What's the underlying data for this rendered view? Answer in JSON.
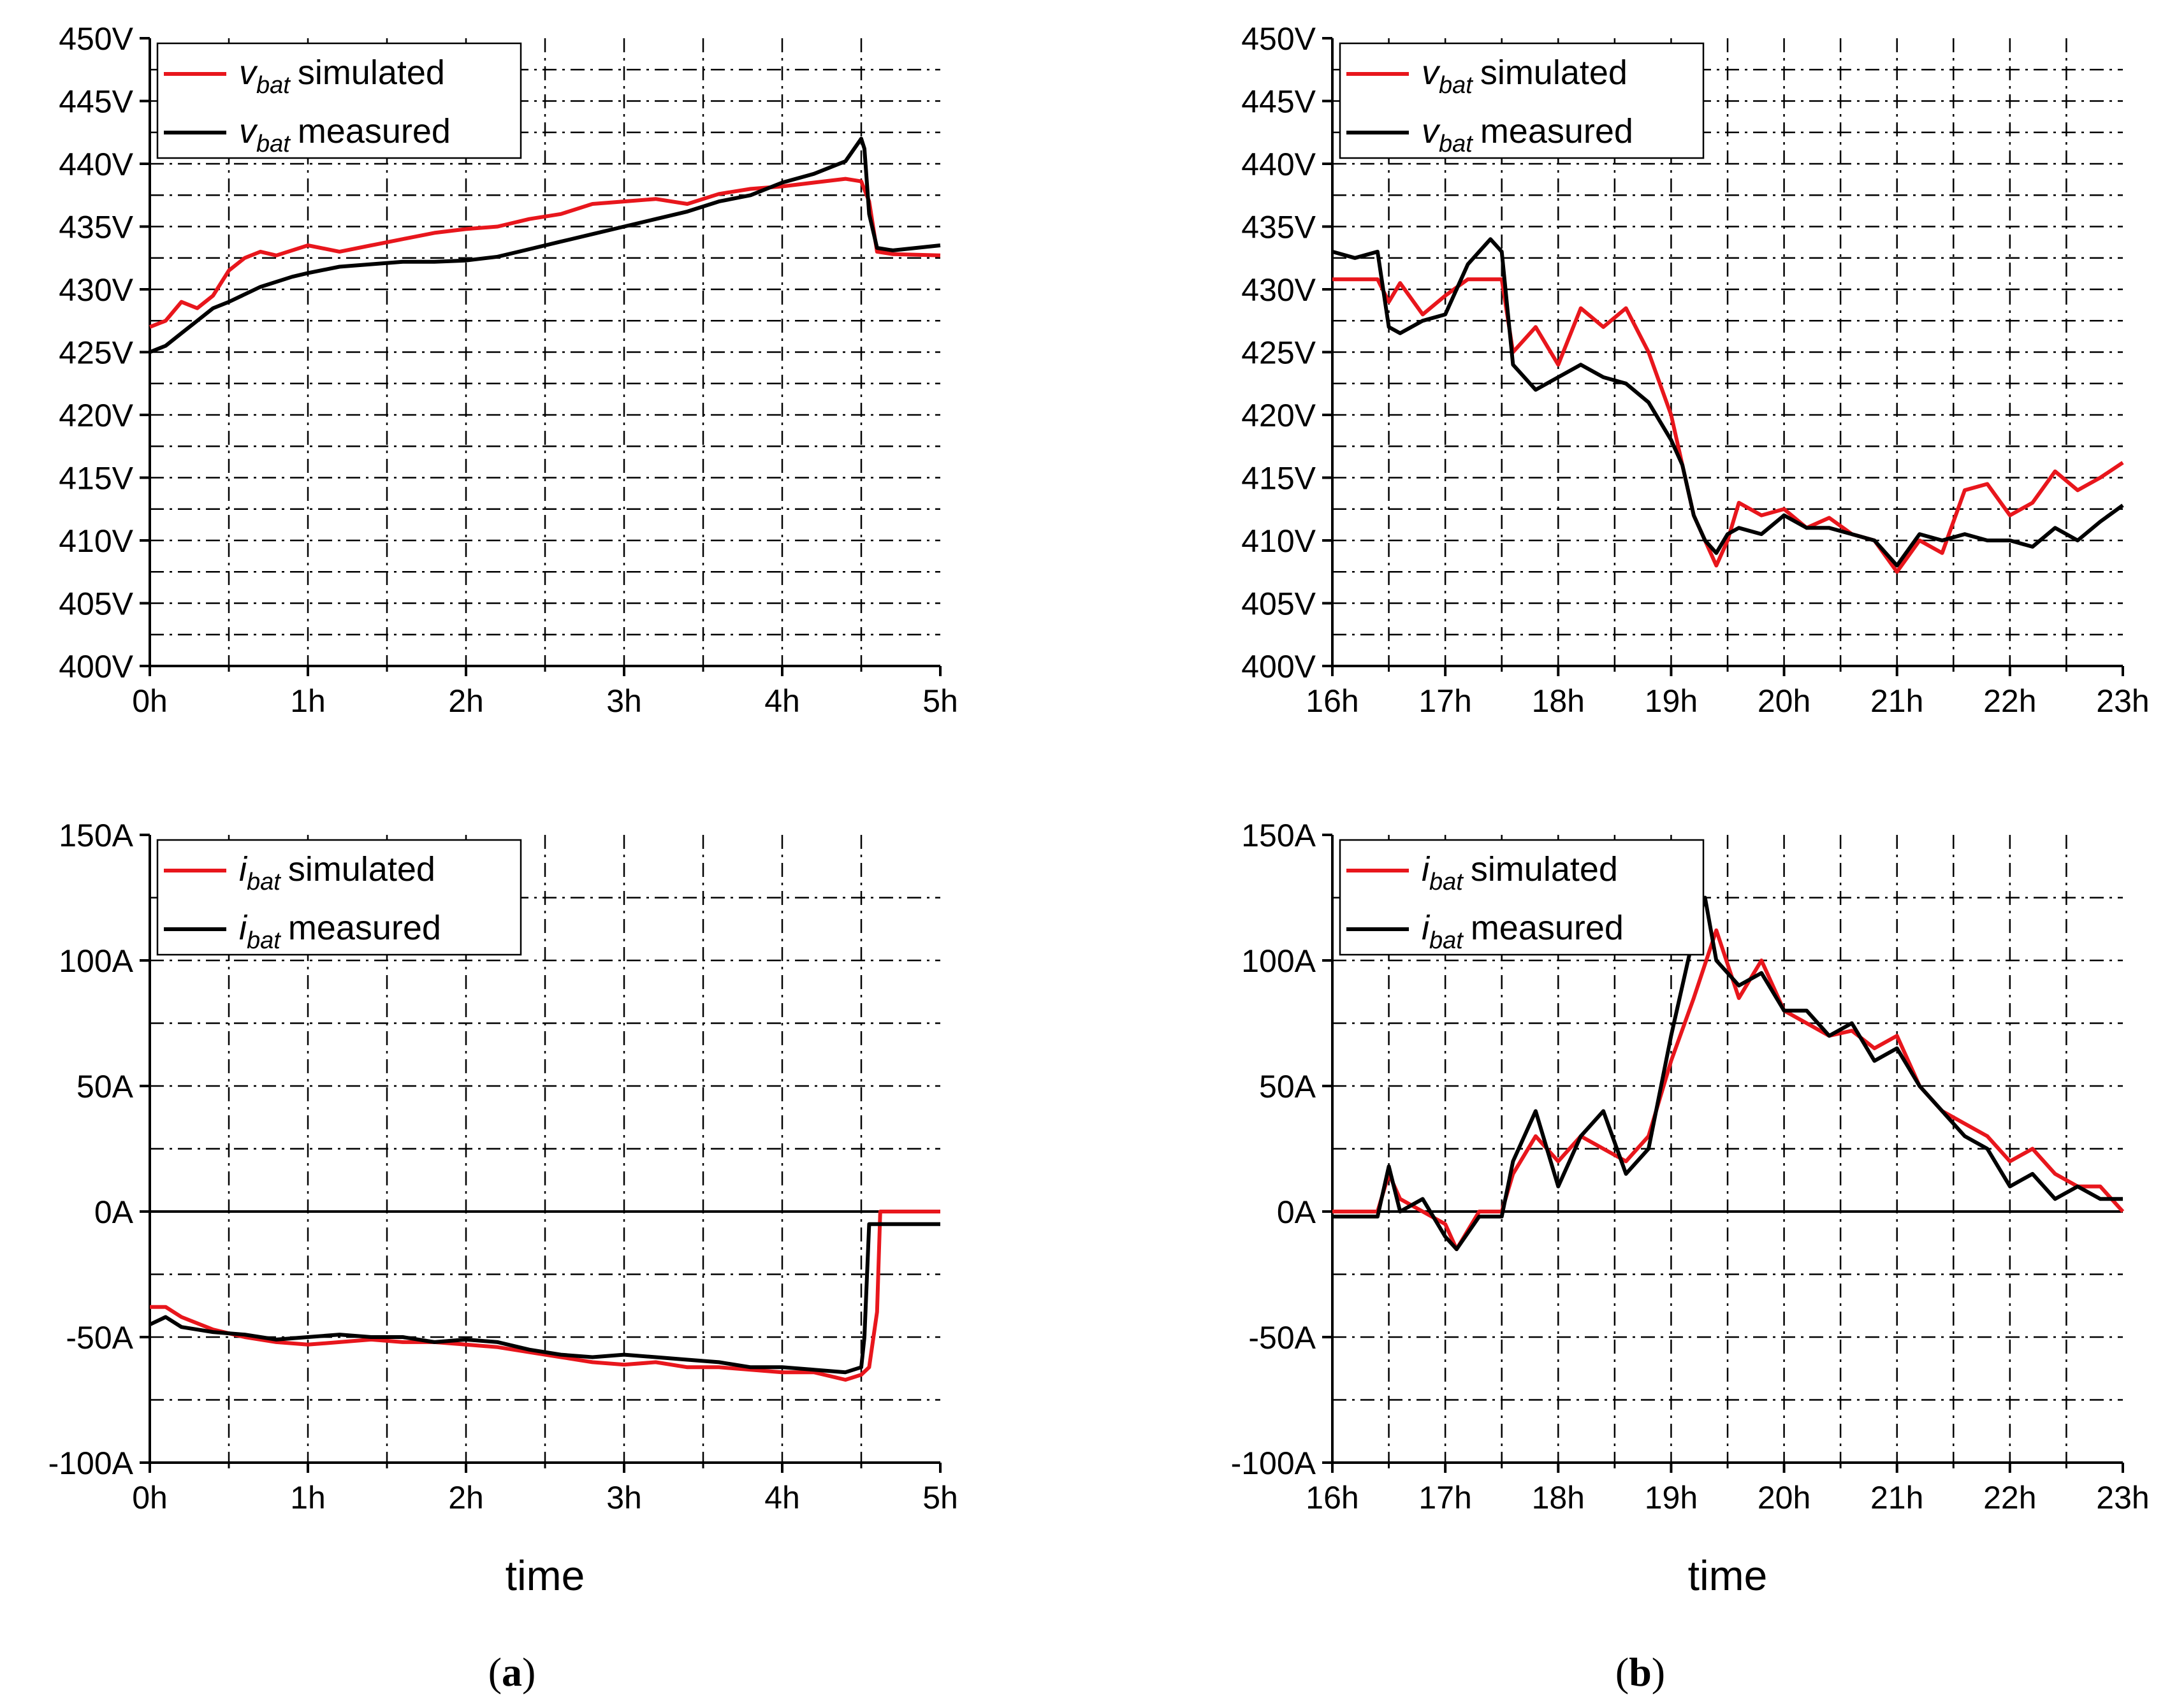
{
  "colors": {
    "simulated": "#e8161c",
    "measured": "#000000",
    "grid": "#000000"
  },
  "captions": [
    "a",
    "b"
  ],
  "chart_data": [
    {
      "type": "line",
      "panel": "a-top",
      "xlabel": "",
      "ylabel": "",
      "xlim": [
        0,
        5
      ],
      "ylim": [
        400,
        450
      ],
      "xticks": [
        0,
        1,
        2,
        3,
        4,
        5
      ],
      "xticklabels": [
        "0h",
        "1h",
        "2h",
        "3h",
        "4h",
        "5h"
      ],
      "yticks": [
        400,
        405,
        410,
        415,
        420,
        425,
        430,
        435,
        440,
        445,
        450
      ],
      "yticklabels": [
        "400V",
        "405V",
        "410V",
        "415V",
        "420V",
        "425V",
        "430V",
        "435V",
        "440V",
        "445V",
        "450V"
      ],
      "grid": true,
      "legend": "top-left",
      "series": [
        {
          "name": "simulated",
          "var": "v",
          "sub": "bat",
          "label": "simulated",
          "color": "#e8161c",
          "x": [
            0,
            0.1,
            0.2,
            0.3,
            0.4,
            0.5,
            0.6,
            0.7,
            0.8,
            1.0,
            1.2,
            1.4,
            1.6,
            1.8,
            2.0,
            2.2,
            2.4,
            2.6,
            2.8,
            3.0,
            3.2,
            3.4,
            3.6,
            3.8,
            4.0,
            4.2,
            4.4,
            4.5,
            4.55,
            4.6,
            4.7,
            5.0
          ],
          "values": [
            427,
            427.5,
            429,
            428.5,
            429.5,
            431.5,
            432.5,
            433,
            432.7,
            433.5,
            433,
            433.5,
            434,
            434.5,
            434.8,
            435,
            435.6,
            436,
            436.8,
            437,
            437.2,
            436.8,
            437.6,
            438,
            438.2,
            438.5,
            438.8,
            438.6,
            437,
            433,
            432.8,
            432.7
          ]
        },
        {
          "name": "measured",
          "var": "v",
          "sub": "bat",
          "label": "measured",
          "color": "#000000",
          "x": [
            0,
            0.1,
            0.2,
            0.3,
            0.4,
            0.5,
            0.7,
            0.9,
            1.0,
            1.2,
            1.4,
            1.6,
            1.8,
            2.0,
            2.2,
            2.4,
            2.6,
            2.8,
            3.0,
            3.2,
            3.4,
            3.6,
            3.8,
            4.0,
            4.2,
            4.4,
            4.5,
            4.52,
            4.55,
            4.6,
            4.7,
            5.0
          ],
          "values": [
            425,
            425.5,
            426.5,
            427.5,
            428.5,
            429,
            430.2,
            431,
            431.3,
            431.8,
            432,
            432.2,
            432.2,
            432.3,
            432.6,
            433.2,
            433.8,
            434.4,
            435,
            435.6,
            436.2,
            437,
            437.5,
            438.5,
            439.2,
            440.2,
            442,
            441.2,
            436,
            433.3,
            433.1,
            433.5
          ]
        }
      ]
    },
    {
      "type": "line",
      "panel": "b-top",
      "xlabel": "",
      "ylabel": "",
      "xlim": [
        16,
        23
      ],
      "ylim": [
        400,
        450
      ],
      "xticks": [
        16,
        17,
        18,
        19,
        20,
        21,
        22,
        23
      ],
      "xticklabels": [
        "16h",
        "17h",
        "18h",
        "19h",
        "20h",
        "21h",
        "22h",
        "23h"
      ],
      "yticks": [
        400,
        405,
        410,
        415,
        420,
        425,
        430,
        435,
        440,
        445,
        450
      ],
      "yticklabels": [
        "400V",
        "405V",
        "410V",
        "415V",
        "420V",
        "425V",
        "430V",
        "435V",
        "440V",
        "445V",
        "450V"
      ],
      "grid": true,
      "legend": "top-left",
      "series": [
        {
          "name": "simulated",
          "var": "v",
          "sub": "bat",
          "label": "simulated",
          "color": "#e8161c",
          "x": [
            16,
            16.4,
            16.5,
            16.6,
            16.8,
            17,
            17.2,
            17.4,
            17.5,
            17.6,
            17.8,
            18,
            18.2,
            18.4,
            18.6,
            18.8,
            19,
            19.1,
            19.2,
            19.3,
            19.4,
            19.5,
            19.6,
            19.8,
            20,
            20.2,
            20.4,
            20.6,
            20.8,
            21,
            21.2,
            21.4,
            21.6,
            21.8,
            22,
            22.2,
            22.4,
            22.6,
            22.8,
            23
          ],
          "values": [
            430.8,
            430.8,
            429,
            430.5,
            428,
            429.5,
            430.8,
            430.8,
            430.8,
            425,
            427,
            424,
            428.5,
            427,
            428.5,
            425,
            420,
            416,
            412,
            410,
            408,
            410,
            413,
            412,
            412.5,
            411,
            411.8,
            410.5,
            410,
            407.5,
            410,
            409,
            414,
            414.5,
            412,
            413,
            415.5,
            414,
            415,
            416.2
          ]
        },
        {
          "name": "measured",
          "var": "v",
          "sub": "bat",
          "label": "measured",
          "color": "#000000",
          "x": [
            16,
            16.2,
            16.4,
            16.5,
            16.6,
            16.8,
            17,
            17.2,
            17.4,
            17.5,
            17.6,
            17.8,
            18,
            18.2,
            18.4,
            18.6,
            18.8,
            19,
            19.1,
            19.2,
            19.3,
            19.4,
            19.5,
            19.6,
            19.8,
            20,
            20.2,
            20.4,
            20.6,
            20.8,
            21,
            21.2,
            21.4,
            21.6,
            21.8,
            22,
            22.2,
            22.4,
            22.6,
            22.8,
            23
          ],
          "values": [
            433,
            432.5,
            433,
            427,
            426.5,
            427.5,
            428,
            432,
            434,
            433,
            424,
            422,
            423,
            424,
            423,
            422.5,
            421,
            418,
            416,
            412,
            410,
            409,
            410.5,
            411,
            410.5,
            412,
            411,
            411,
            410.5,
            410,
            408,
            410.5,
            410,
            410.5,
            410,
            410,
            409.5,
            411,
            410,
            411.5,
            412.8
          ]
        }
      ]
    },
    {
      "type": "line",
      "panel": "a-bottom",
      "xlabel": "time",
      "ylabel": "",
      "xlim": [
        0,
        5
      ],
      "ylim": [
        -100,
        150
      ],
      "xticks": [
        0,
        1,
        2,
        3,
        4,
        5
      ],
      "xticklabels": [
        "0h",
        "1h",
        "2h",
        "3h",
        "4h",
        "5h"
      ],
      "yticks": [
        -100,
        -50,
        0,
        50,
        100,
        150
      ],
      "yticklabels": [
        "-100A",
        "-50A",
        "0A",
        "50A",
        "100A",
        "150A"
      ],
      "grid": true,
      "legend": "top-left",
      "series": [
        {
          "name": "simulated",
          "var": "i",
          "sub": "bat",
          "label": "simulated",
          "color": "#e8161c",
          "x": [
            0,
            0.1,
            0.2,
            0.4,
            0.6,
            0.8,
            1.0,
            1.2,
            1.4,
            1.6,
            1.8,
            2.0,
            2.2,
            2.4,
            2.6,
            2.8,
            3.0,
            3.2,
            3.4,
            3.6,
            3.8,
            4.0,
            4.2,
            4.4,
            4.5,
            4.55,
            4.6,
            4.62,
            5.0
          ],
          "values": [
            -38,
            -38,
            -42,
            -47,
            -50,
            -52,
            -53,
            -52,
            -51,
            -52,
            -52,
            -53,
            -54,
            -56,
            -58,
            -60,
            -61,
            -60,
            -62,
            -62,
            -63,
            -64,
            -64,
            -67,
            -65,
            -62,
            -40,
            0,
            0
          ]
        },
        {
          "name": "measured",
          "var": "i",
          "sub": "bat",
          "label": "measured",
          "color": "#000000",
          "x": [
            0,
            0.1,
            0.2,
            0.4,
            0.6,
            0.8,
            1.0,
            1.2,
            1.4,
            1.6,
            1.8,
            2.0,
            2.2,
            2.4,
            2.6,
            2.8,
            3.0,
            3.2,
            3.4,
            3.6,
            3.8,
            4.0,
            4.2,
            4.4,
            4.5,
            4.52,
            4.55,
            5.0
          ],
          "values": [
            -45,
            -42,
            -46,
            -48,
            -49,
            -51,
            -50,
            -49,
            -50,
            -50,
            -52,
            -51,
            -52,
            -55,
            -57,
            -58,
            -57,
            -58,
            -59,
            -60,
            -62,
            -62,
            -63,
            -64,
            -62,
            -50,
            -5,
            -5
          ]
        }
      ]
    },
    {
      "type": "line",
      "panel": "b-bottom",
      "xlabel": "time",
      "ylabel": "",
      "xlim": [
        16,
        23
      ],
      "ylim": [
        -100,
        150
      ],
      "xticks": [
        16,
        17,
        18,
        19,
        20,
        21,
        22,
        23
      ],
      "xticklabels": [
        "16h",
        "17h",
        "18h",
        "19h",
        "20h",
        "21h",
        "22h",
        "23h"
      ],
      "yticks": [
        -100,
        -50,
        0,
        50,
        100,
        150
      ],
      "yticklabels": [
        "-100A",
        "-50A",
        "0A",
        "50A",
        "100A",
        "150A"
      ],
      "grid": true,
      "legend": "top-left",
      "series": [
        {
          "name": "simulated",
          "var": "i",
          "sub": "bat",
          "label": "simulated",
          "color": "#e8161c",
          "x": [
            16,
            16.4,
            16.5,
            16.6,
            16.8,
            17,
            17.1,
            17.3,
            17.5,
            17.6,
            17.8,
            18,
            18.2,
            18.4,
            18.6,
            18.8,
            19,
            19.2,
            19.4,
            19.6,
            19.8,
            20,
            20.2,
            20.4,
            20.6,
            20.8,
            21,
            21.2,
            21.4,
            21.6,
            21.8,
            22,
            22.2,
            22.4,
            22.6,
            22.8,
            23
          ],
          "values": [
            0,
            0,
            15,
            5,
            0,
            -5,
            -15,
            0,
            0,
            15,
            30,
            20,
            30,
            25,
            20,
            30,
            60,
            85,
            112,
            85,
            100,
            80,
            75,
            70,
            72,
            65,
            70,
            50,
            40,
            35,
            30,
            20,
            25,
            15,
            10,
            10,
            0
          ]
        },
        {
          "name": "measured",
          "var": "i",
          "sub": "bat",
          "label": "measured",
          "color": "#000000",
          "x": [
            16,
            16.4,
            16.5,
            16.6,
            16.8,
            17,
            17.1,
            17.3,
            17.5,
            17.6,
            17.8,
            18,
            18.2,
            18.4,
            18.6,
            18.8,
            19,
            19.2,
            19.3,
            19.4,
            19.6,
            19.8,
            20,
            20.2,
            20.4,
            20.6,
            20.8,
            21,
            21.2,
            21.4,
            21.6,
            21.8,
            22,
            22.2,
            22.4,
            22.6,
            22.8,
            23
          ],
          "values": [
            -2,
            -2,
            18,
            0,
            5,
            -10,
            -15,
            -2,
            -2,
            20,
            40,
            10,
            30,
            40,
            15,
            25,
            70,
            110,
            125,
            100,
            90,
            95,
            80,
            80,
            70,
            75,
            60,
            65,
            50,
            40,
            30,
            25,
            10,
            15,
            5,
            10,
            5,
            5
          ]
        }
      ]
    }
  ]
}
